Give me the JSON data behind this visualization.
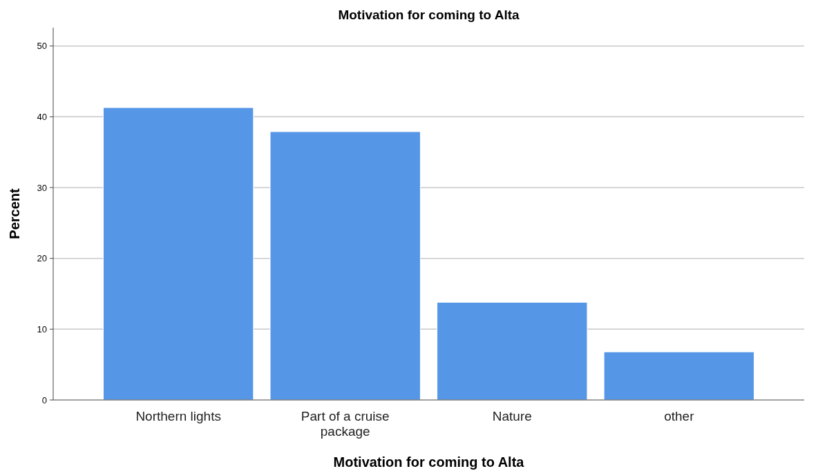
{
  "chart_data": {
    "type": "bar",
    "title": "Motivation for coming to Alta",
    "xlabel": "Motivation for coming to Alta",
    "ylabel": "Percent",
    "categories": [
      "Northern lights",
      "Part of a cruise package",
      "Nature",
      "other"
    ],
    "values": [
      41.3,
      37.9,
      13.8,
      6.8
    ],
    "color": "#5596e6",
    "ylim": [
      0,
      52.6
    ],
    "yticks": [
      0,
      10,
      20,
      30,
      40,
      50
    ],
    "grid": "y"
  }
}
